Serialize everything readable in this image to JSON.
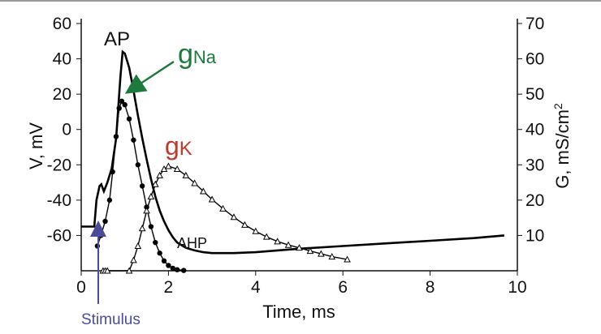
{
  "chart_data": {
    "type": "line",
    "xlabel": "Time, ms",
    "ylabel_left": "V, mV",
    "ylabel_right_base": "G, mS/cm",
    "ylabel_right_sup": "2",
    "xlim": [
      0,
      10
    ],
    "ylim_left": [
      -80,
      60
    ],
    "ylim_right": [
      0,
      70
    ],
    "xticks": [
      "0",
      "2",
      "4",
      "6",
      "8",
      "10"
    ],
    "yticks_left": [
      "60",
      "40",
      "20",
      "0",
      "-20",
      "-40",
      "-60"
    ],
    "yticks_right": [
      "70",
      "60",
      "50",
      "40",
      "30",
      "20",
      "10"
    ],
    "grid": false,
    "colors": {
      "gNa": "#1b7a3c",
      "gK": "#c0392b",
      "stimulus": "#4b4b9a",
      "ap": "#000000"
    },
    "series": [
      {
        "name": "AP",
        "axis": "left",
        "marker": "line",
        "x": [
          0,
          0.3,
          0.35,
          0.42,
          0.46,
          0.52,
          0.6,
          0.7,
          0.8,
          0.9,
          0.95,
          1.0,
          1.1,
          1.2,
          1.3,
          1.4,
          1.5,
          1.6,
          1.7,
          1.8,
          1.9,
          2.0,
          2.1,
          2.2,
          2.4,
          2.6,
          2.8,
          3.0,
          3.5,
          4.0,
          5.0,
          6.0,
          7.0,
          8.0,
          9.0,
          9.7
        ],
        "y": [
          -55,
          -55,
          -40,
          -32,
          -31,
          -35,
          -30,
          -22,
          -5,
          30,
          44,
          43,
          35,
          22,
          8,
          -5,
          -17,
          -28,
          -38,
          -46,
          -52,
          -57,
          -61,
          -64,
          -67,
          -68.5,
          -69.5,
          -70,
          -70,
          -69.5,
          -67.5,
          -66,
          -64.5,
          -63,
          -61.5,
          -60
        ]
      },
      {
        "name": "gNa",
        "axis": "right",
        "marker": "dot",
        "x": [
          0.37,
          0.45,
          0.55,
          0.65,
          0.72,
          0.8,
          0.87,
          0.93,
          1.0,
          1.1,
          1.2,
          1.3,
          1.4,
          1.5,
          1.6,
          1.7,
          1.8,
          1.9,
          2.0,
          2.1,
          2.2,
          2.35
        ],
        "y": [
          7,
          10,
          14,
          20,
          28,
          38,
          46,
          48,
          47,
          43,
          37,
          30,
          24,
          18,
          12.5,
          8,
          5,
          2.8,
          1.5,
          0.7,
          0.3,
          0.1
        ]
      },
      {
        "name": "gK",
        "axis": "right",
        "marker": "triangle",
        "x": [
          0.5,
          0.55,
          0.6,
          1.1,
          1.2,
          1.3,
          1.4,
          1.5,
          1.6,
          1.7,
          1.8,
          1.9,
          2.0,
          2.2,
          2.4,
          2.6,
          2.8,
          3.0,
          3.25,
          3.5,
          3.75,
          4.0,
          4.25,
          4.5,
          4.75,
          5.0,
          5.25,
          5.5,
          5.75,
          6.1
        ],
        "y": [
          0,
          0,
          0,
          0,
          3,
          7,
          12,
          17,
          21,
          24.5,
          27,
          28.8,
          29.6,
          28.8,
          27,
          24.8,
          22.5,
          20.2,
          17.6,
          15.2,
          13,
          11.2,
          9.6,
          8.3,
          7.3,
          6.5,
          5.6,
          4.8,
          4,
          3.2
        ]
      }
    ],
    "annotations": {
      "ap": "AP",
      "gna_main": "g",
      "gna_sub": "Na",
      "gk_main": "g",
      "gk_sub": "K",
      "ahp": "AHP",
      "stimulus": "Stimulus"
    }
  }
}
